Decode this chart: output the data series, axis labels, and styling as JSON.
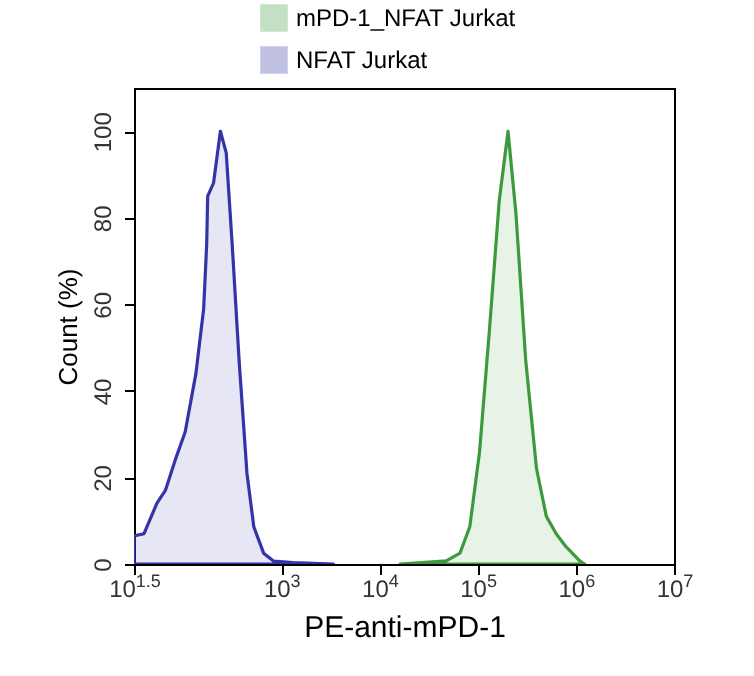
{
  "chart_data": {
    "type": "area",
    "xlabel": "PE-anti-mPD-1",
    "ylabel": "Count (%)",
    "log": "x",
    "legend": "top",
    "grid": false,
    "xlim": [
      31.62,
      10000000
    ],
    "xticks": [
      {
        "value": 31.62,
        "label": "10$^{1.5}$"
      },
      {
        "value": 1000,
        "label": "10$^{3}$"
      },
      {
        "value": 10000,
        "label": "10$^{4}$"
      },
      {
        "value": 100000,
        "label": "10$^{5}$"
      },
      {
        "value": 1000000,
        "label": "10$^{6}$"
      },
      {
        "value": 10000000,
        "label": "10$^{7}$"
      }
    ],
    "ylim": [
      0,
      110
    ],
    "yticks": [
      0,
      20,
      40,
      60,
      80,
      100
    ],
    "series": [
      {
        "name": "mPD-1_NFAT Jurkat",
        "color": "#3c9a3c",
        "x": [
          16200,
          47900,
          66100,
          83200,
          104700,
          131800,
          166000,
          204000,
          245500,
          309000,
          398000,
          501000,
          631000,
          794000,
          1096000,
          1230000
        ],
        "values": [
          0,
          0.7,
          2.5,
          8.6,
          26,
          54,
          84,
          100,
          81,
          47,
          22,
          11,
          7,
          4,
          0.7,
          0
        ]
      },
      {
        "name": "NFAT Jurkat",
        "color": "#3434a8",
        "x": [
          31.62,
          40,
          54,
          66,
          83,
          105,
          135,
          162,
          174,
          178,
          204,
          240,
          275,
          316,
          372,
          447,
          525,
          661,
          832,
          1318,
          3390
        ],
        "values": [
          6.5,
          7,
          14,
          17,
          24,
          30.5,
          44,
          59,
          74,
          85,
          88,
          100,
          95,
          74,
          47,
          21,
          8.6,
          2.5,
          0.7,
          0.3,
          0
        ]
      }
    ]
  }
}
